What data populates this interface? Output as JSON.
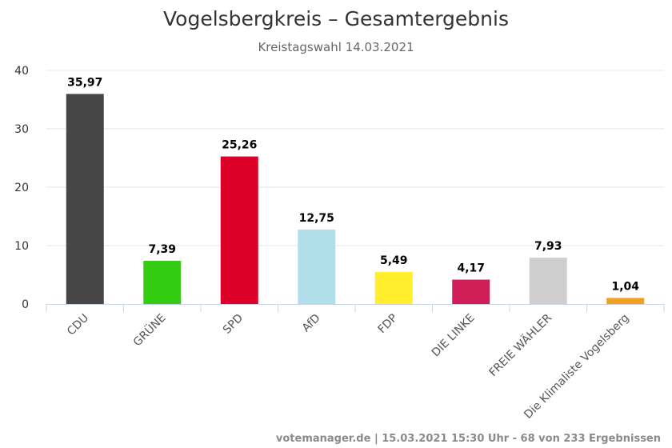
{
  "chart_data": {
    "type": "bar",
    "title": "Vogelsbergkreis – Gesamtergebnis",
    "subtitle": "Kreistagswahl 14.03.2021",
    "categories": [
      "CDU",
      "GRÜNE",
      "SPD",
      "AfD",
      "FDP",
      "DIE LINKE",
      "FREIE WÄHLER",
      "Die Klimaliste Vogelsberg"
    ],
    "values": [
      35.97,
      7.39,
      25.26,
      12.75,
      5.49,
      4.17,
      7.93,
      1.04
    ],
    "value_labels": [
      "35,97",
      "7,39",
      "25,26",
      "12,75",
      "5,49",
      "4,17",
      "7,93",
      "1,04"
    ],
    "colors": [
      "#464646",
      "#33cc11",
      "#dc0028",
      "#b0dfea",
      "#ffed2e",
      "#d01e58",
      "#cecece",
      "#f0a01e"
    ],
    "ylim": [
      0,
      40
    ],
    "yticks": [
      0,
      10,
      20,
      30,
      40
    ],
    "grid": true,
    "legend": "none"
  },
  "credits": "votemanager.de | 15.03.2021 15:30 Uhr - 68 von 233 Ergebnissen"
}
